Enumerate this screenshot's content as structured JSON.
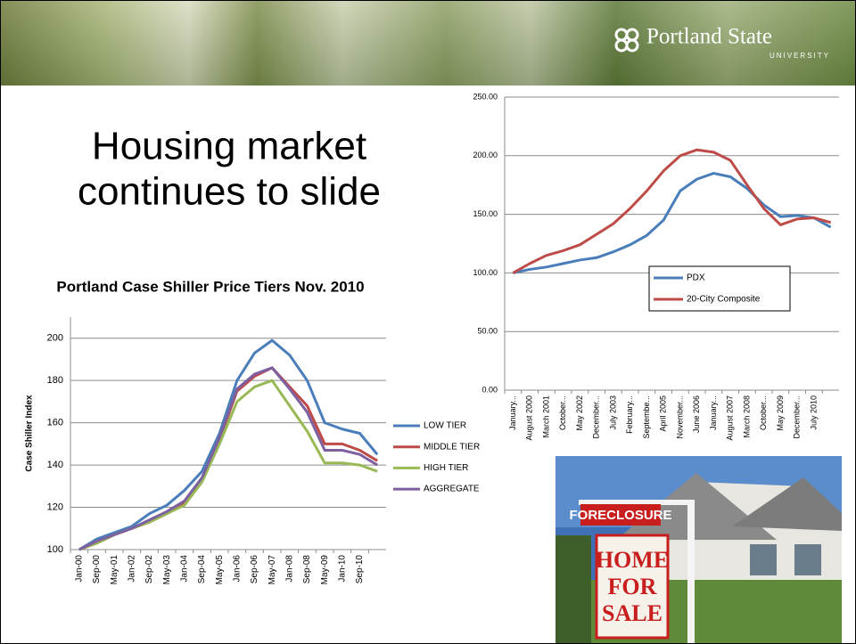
{
  "logo": {
    "name": "Portland State",
    "sub": "UNIVERSITY"
  },
  "slide_title": [
    "Housing market",
    "continues to slide"
  ],
  "photo": {
    "sign_top": "FORECLOSURE",
    "sign_lines": [
      "HOME",
      "FOR",
      "SALE"
    ]
  },
  "chart_data": [
    {
      "type": "line",
      "legend": "inside",
      "grid": true,
      "categories": [
        "January...",
        "August 2000",
        "March 2001",
        "October...",
        "May 2002",
        "December...",
        "July 2003",
        "February...",
        "Septembe...",
        "April 2005",
        "November...",
        "June 2006",
        "January...",
        "August 2007",
        "March 2008",
        "October...",
        "May 2009",
        "December...",
        "July 2010",
        null
      ],
      "series": [
        {
          "name": "PDX",
          "color": "#4a7ebb",
          "values": [
            100,
            103,
            105,
            108,
            111,
            113,
            118,
            124,
            132,
            145,
            170,
            180,
            185,
            182,
            172,
            158,
            148,
            149,
            147,
            139
          ]
        },
        {
          "name": "20-City Composite",
          "color": "#be4b48",
          "values": [
            100,
            108,
            115,
            119,
            124,
            133,
            142,
            155,
            170,
            187,
            200,
            205,
            203,
            196,
            175,
            155,
            141,
            146,
            147,
            143
          ]
        }
      ],
      "ylim": [
        0,
        250
      ],
      "yticks": [
        {
          "value": 0,
          "label": "0.00"
        },
        {
          "value": 50,
          "label": "50.00"
        },
        {
          "value": 100,
          "label": "100.00"
        },
        {
          "value": 150,
          "label": "150.00"
        },
        {
          "value": 200,
          "label": "200.00"
        },
        {
          "value": 250,
          "label": "250.00"
        }
      ]
    },
    {
      "type": "line",
      "legend": "right",
      "grid": true,
      "title": "Portland Case Shiller Price Tiers Nov. 2010",
      "y_label": "Case Shiller Index",
      "categories": [
        "Jan-00",
        "Sep-00",
        "May-01",
        "Jan-02",
        "Sep-02",
        "May-03",
        "Jan-04",
        "Sep-04",
        "May-05",
        "Jan-06",
        "Sep-06",
        "May-07",
        "Jan-08",
        "Sep-08",
        "May-09",
        "Jan-10",
        "Sep-10",
        null
      ],
      "series": [
        {
          "name": "LOW TIER",
          "color": "#4a7ebb",
          "values": [
            100,
            105,
            108,
            111,
            117,
            121,
            128,
            137,
            155,
            180,
            193,
            199,
            192,
            180,
            160,
            157,
            155,
            145
          ]
        },
        {
          "name": "MIDDLE TIER",
          "color": "#be4b48",
          "values": [
            100,
            103,
            107,
            110,
            113,
            117,
            122,
            133,
            152,
            175,
            182,
            186,
            177,
            168,
            150,
            150,
            147,
            142
          ]
        },
        {
          "name": "HIGH TIER",
          "color": "#98b954",
          "values": [
            100,
            103,
            107,
            110,
            113,
            117,
            121,
            132,
            150,
            170,
            177,
            180,
            168,
            156,
            141,
            141,
            140,
            137
          ]
        },
        {
          "name": "AGGREGATE",
          "color": "#7d60a0",
          "values": [
            100,
            104,
            107,
            110,
            114,
            118,
            123,
            134,
            153,
            176,
            183,
            186,
            176,
            165,
            147,
            147,
            145,
            140
          ]
        }
      ],
      "ylim": [
        100,
        210
      ],
      "yticks": [
        100,
        120,
        140,
        160,
        180,
        200
      ]
    }
  ]
}
